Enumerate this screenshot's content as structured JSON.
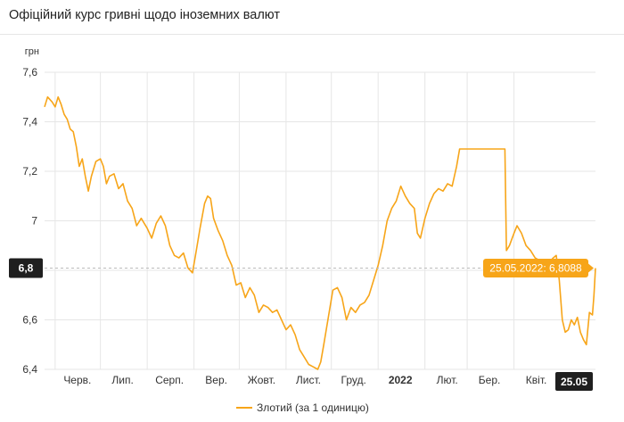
{
  "header": {
    "title": "Офіційний курс гривні щодо іноземних валют"
  },
  "chart_data": {
    "type": "line",
    "title": "",
    "xlabel": "",
    "ylabel": "грн",
    "ylim": [
      6.4,
      7.6
    ],
    "yticks": [
      {
        "value": 7.6,
        "label": "7,6"
      },
      {
        "value": 7.4,
        "label": "7,4"
      },
      {
        "value": 7.2,
        "label": "7,2"
      },
      {
        "value": 7.0,
        "label": "7"
      },
      {
        "value": 6.6,
        "label": "6,6"
      },
      {
        "value": 6.4,
        "label": "6,4"
      }
    ],
    "xlim": [
      "2021-05-25",
      "2022-05-25"
    ],
    "xticks": [
      {
        "date": "2021-06-01",
        "label": "Черв."
      },
      {
        "date": "2021-07-01",
        "label": "Лип."
      },
      {
        "date": "2021-08-01",
        "label": "Серп."
      },
      {
        "date": "2021-09-01",
        "label": "Вер."
      },
      {
        "date": "2021-10-01",
        "label": "Жовт."
      },
      {
        "date": "2021-11-01",
        "label": "Лист."
      },
      {
        "date": "2021-12-01",
        "label": "Груд."
      },
      {
        "date": "2022-01-01",
        "label": "2022",
        "bold": true
      },
      {
        "date": "2022-02-01",
        "label": "Лют."
      },
      {
        "date": "2022-03-01",
        "label": "Бер."
      },
      {
        "date": "2022-04-01",
        "label": "Квіт."
      }
    ],
    "grid": true,
    "legend_position": "bottom",
    "colors": {
      "line": "#f7a519",
      "tooltip_bg": "#f7a519",
      "marker_bg": "#1f1f1f",
      "grid": "#e6e6e6"
    },
    "crosshair": {
      "y_label": "6,8",
      "x_label": "25.05",
      "tooltip": "25.05.2022: 6,8088"
    },
    "series": [
      {
        "name": "Злотий (за 1 одиницю)",
        "points": [
          [
            "2021-05-25",
            7.46
          ],
          [
            "2021-05-27",
            7.5
          ],
          [
            "2021-05-30",
            7.48
          ],
          [
            "2021-06-01",
            7.46
          ],
          [
            "2021-06-03",
            7.5
          ],
          [
            "2021-06-05",
            7.47
          ],
          [
            "2021-06-07",
            7.43
          ],
          [
            "2021-06-09",
            7.41
          ],
          [
            "2021-06-11",
            7.37
          ],
          [
            "2021-06-13",
            7.36
          ],
          [
            "2021-06-15",
            7.3
          ],
          [
            "2021-06-17",
            7.22
          ],
          [
            "2021-06-19",
            7.25
          ],
          [
            "2021-06-21",
            7.18
          ],
          [
            "2021-06-23",
            7.12
          ],
          [
            "2021-06-25",
            7.18
          ],
          [
            "2021-06-28",
            7.24
          ],
          [
            "2021-07-01",
            7.25
          ],
          [
            "2021-07-03",
            7.22
          ],
          [
            "2021-07-05",
            7.15
          ],
          [
            "2021-07-07",
            7.18
          ],
          [
            "2021-07-10",
            7.19
          ],
          [
            "2021-07-13",
            7.13
          ],
          [
            "2021-07-16",
            7.15
          ],
          [
            "2021-07-19",
            7.08
          ],
          [
            "2021-07-22",
            7.05
          ],
          [
            "2021-07-25",
            6.98
          ],
          [
            "2021-07-28",
            7.01
          ],
          [
            "2021-08-01",
            6.97
          ],
          [
            "2021-08-04",
            6.93
          ],
          [
            "2021-08-07",
            6.99
          ],
          [
            "2021-08-10",
            7.02
          ],
          [
            "2021-08-13",
            6.98
          ],
          [
            "2021-08-16",
            6.9
          ],
          [
            "2021-08-19",
            6.86
          ],
          [
            "2021-08-22",
            6.85
          ],
          [
            "2021-08-25",
            6.87
          ],
          [
            "2021-08-28",
            6.81
          ],
          [
            "2021-08-31",
            6.79
          ],
          [
            "2021-09-02",
            6.86
          ],
          [
            "2021-09-05",
            6.97
          ],
          [
            "2021-09-08",
            7.07
          ],
          [
            "2021-09-10",
            7.1
          ],
          [
            "2021-09-12",
            7.09
          ],
          [
            "2021-09-14",
            7.01
          ],
          [
            "2021-09-17",
            6.96
          ],
          [
            "2021-09-20",
            6.92
          ],
          [
            "2021-09-23",
            6.86
          ],
          [
            "2021-09-26",
            6.82
          ],
          [
            "2021-09-29",
            6.74
          ],
          [
            "2021-10-02",
            6.75
          ],
          [
            "2021-10-05",
            6.69
          ],
          [
            "2021-10-08",
            6.73
          ],
          [
            "2021-10-11",
            6.7
          ],
          [
            "2021-10-14",
            6.63
          ],
          [
            "2021-10-17",
            6.66
          ],
          [
            "2021-10-20",
            6.65
          ],
          [
            "2021-10-23",
            6.63
          ],
          [
            "2021-10-26",
            6.64
          ],
          [
            "2021-10-29",
            6.6
          ],
          [
            "2021-11-01",
            6.56
          ],
          [
            "2021-11-04",
            6.58
          ],
          [
            "2021-11-07",
            6.54
          ],
          [
            "2021-11-10",
            6.48
          ],
          [
            "2021-11-13",
            6.45
          ],
          [
            "2021-11-16",
            6.42
          ],
          [
            "2021-11-19",
            6.41
          ],
          [
            "2021-11-22",
            6.4
          ],
          [
            "2021-11-24",
            6.43
          ],
          [
            "2021-11-26",
            6.5
          ],
          [
            "2021-11-29",
            6.61
          ],
          [
            "2021-12-02",
            6.72
          ],
          [
            "2021-12-05",
            6.73
          ],
          [
            "2021-12-08",
            6.69
          ],
          [
            "2021-12-11",
            6.6
          ],
          [
            "2021-12-14",
            6.65
          ],
          [
            "2021-12-17",
            6.63
          ],
          [
            "2021-12-20",
            6.66
          ],
          [
            "2021-12-23",
            6.67
          ],
          [
            "2021-12-26",
            6.7
          ],
          [
            "2021-12-29",
            6.76
          ],
          [
            "2022-01-01",
            6.82
          ],
          [
            "2022-01-04",
            6.9
          ],
          [
            "2022-01-07",
            7.0
          ],
          [
            "2022-01-10",
            7.05
          ],
          [
            "2022-01-13",
            7.08
          ],
          [
            "2022-01-16",
            7.14
          ],
          [
            "2022-01-19",
            7.1
          ],
          [
            "2022-01-22",
            7.07
          ],
          [
            "2022-01-25",
            7.05
          ],
          [
            "2022-01-27",
            6.95
          ],
          [
            "2022-01-29",
            6.93
          ],
          [
            "2022-02-01",
            7.01
          ],
          [
            "2022-02-04",
            7.07
          ],
          [
            "2022-02-07",
            7.11
          ],
          [
            "2022-02-10",
            7.13
          ],
          [
            "2022-02-13",
            7.12
          ],
          [
            "2022-02-16",
            7.15
          ],
          [
            "2022-02-19",
            7.14
          ],
          [
            "2022-02-22",
            7.22
          ],
          [
            "2022-02-24",
            7.29
          ],
          [
            "2022-03-01",
            7.29
          ],
          [
            "2022-03-08",
            7.29
          ],
          [
            "2022-03-15",
            7.29
          ],
          [
            "2022-03-22",
            7.29
          ],
          [
            "2022-03-26",
            7.29
          ],
          [
            "2022-03-27",
            6.88
          ],
          [
            "2022-03-29",
            6.9
          ],
          [
            "2022-04-01",
            6.95
          ],
          [
            "2022-04-03",
            6.98
          ],
          [
            "2022-04-06",
            6.95
          ],
          [
            "2022-04-09",
            6.9
          ],
          [
            "2022-04-12",
            6.88
          ],
          [
            "2022-04-15",
            6.85
          ],
          [
            "2022-04-18",
            6.84
          ],
          [
            "2022-04-21",
            6.82
          ],
          [
            "2022-04-24",
            6.83
          ],
          [
            "2022-04-27",
            6.85
          ],
          [
            "2022-04-29",
            6.86
          ],
          [
            "2022-05-01",
            6.76
          ],
          [
            "2022-05-03",
            6.6
          ],
          [
            "2022-05-05",
            6.55
          ],
          [
            "2022-05-07",
            6.56
          ],
          [
            "2022-05-09",
            6.6
          ],
          [
            "2022-05-11",
            6.58
          ],
          [
            "2022-05-13",
            6.61
          ],
          [
            "2022-05-15",
            6.55
          ],
          [
            "2022-05-17",
            6.52
          ],
          [
            "2022-05-19",
            6.5
          ],
          [
            "2022-05-21",
            6.63
          ],
          [
            "2022-05-23",
            6.62
          ],
          [
            "2022-05-24",
            6.7
          ],
          [
            "2022-05-25",
            6.8088
          ]
        ]
      }
    ]
  }
}
